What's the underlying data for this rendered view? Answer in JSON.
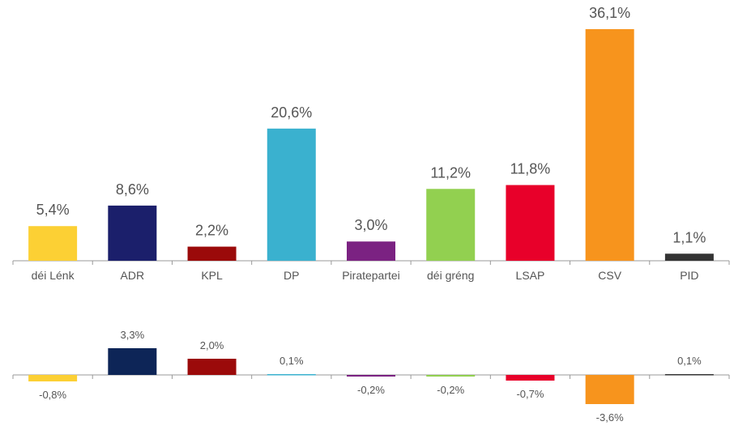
{
  "chart_data": [
    {
      "type": "bar",
      "categories": [
        "déi Lénk",
        "ADR",
        "KPL",
        "DP",
        "Piratepartei",
        "déi gréng",
        "LSAP",
        "CSV",
        "PID"
      ],
      "values": [
        5.4,
        8.6,
        2.2,
        20.6,
        3.0,
        11.2,
        11.8,
        36.1,
        1.1
      ],
      "value_labels": [
        "5,4%",
        "8,6%",
        "2,2%",
        "20,6%",
        "3,0%",
        "11,2%",
        "11,8%",
        "36,1%",
        "1,1%"
      ],
      "colors": [
        "#fcd034",
        "#1b1f6b",
        "#9b0a0a",
        "#3ab1cf",
        "#7b2282",
        "#92d050",
        "#e8002a",
        "#f7941d",
        "#333333"
      ]
    },
    {
      "type": "bar",
      "values": [
        -0.8,
        3.3,
        2.0,
        0.1,
        -0.2,
        -0.2,
        -0.7,
        -3.6,
        0.1
      ],
      "value_labels": [
        "-0,8%",
        "3,3%",
        "2,0%",
        "0,1%",
        "-0,2%",
        "-0,2%",
        "-0,7%",
        "-3,6%",
        "0,1%"
      ],
      "colors": [
        "#fcd034",
        "#0d2557",
        "#9b0a0a",
        "#3ab1cf",
        "#7b2282",
        "#92d050",
        "#e8002a",
        "#f7941d",
        "#333333"
      ]
    }
  ]
}
